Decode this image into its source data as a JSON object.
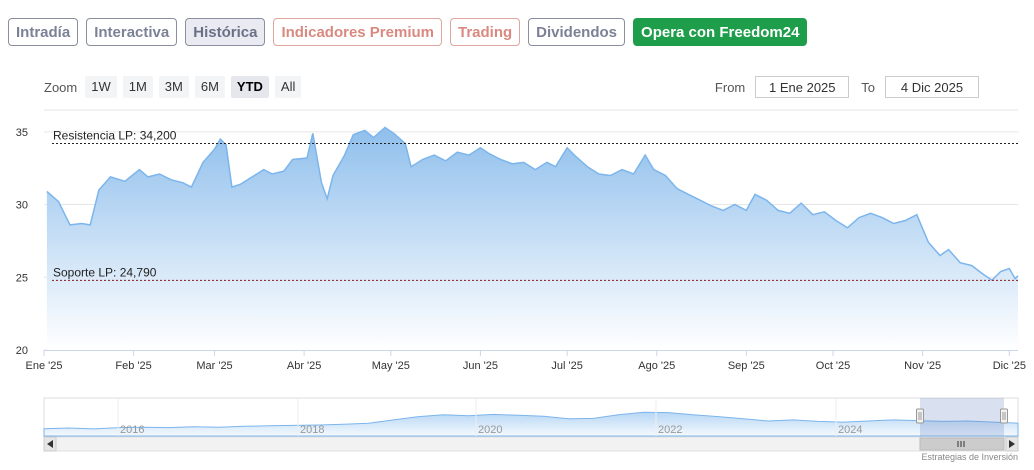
{
  "tabs": [
    {
      "label": "Intradía",
      "state": "normal"
    },
    {
      "label": "Interactiva",
      "state": "normal"
    },
    {
      "label": "Histórica",
      "state": "active"
    },
    {
      "label": "Indicadores Premium",
      "state": "premium"
    },
    {
      "label": "Trading",
      "state": "premium"
    },
    {
      "label": "Dividendos",
      "state": "normal"
    },
    {
      "label": "Opera con Freedom24",
      "state": "cta"
    }
  ],
  "toolbar": {
    "zoom_label": "Zoom",
    "zoom_buttons": [
      "1W",
      "1M",
      "3M",
      "6M",
      "YTD",
      "All"
    ],
    "selected": "YTD"
  },
  "range": {
    "from_label": "From",
    "from_value": "1 Ene 2025",
    "to_label": "To",
    "to_value": "4 Dic 2025"
  },
  "credits": "Estrategias de Inversión",
  "colors": {
    "series_line": "#7cb5ec",
    "area_top": "#8fbfec",
    "area_bottom": "#ffffff",
    "tab_active_bg": "#e9eaf2",
    "premium_border": "#e0a59f",
    "cta_green": "#1e9e4a",
    "resistance_line": "#222222",
    "support_line": "#8b1a1a"
  },
  "chart_data": {
    "type": "area",
    "title": "",
    "xlabel": "",
    "ylabel": "",
    "ylim": [
      20,
      36.5
    ],
    "y_ticks": [
      20,
      25,
      30,
      35
    ],
    "x_ticks": [
      "Ene '25",
      "Feb '25",
      "Mar '25",
      "Abr '25",
      "May '25",
      "Jun '25",
      "Jul '25",
      "Ago '25",
      "Sep '25",
      "Oct '25",
      "Nov '25",
      "Dic '25"
    ],
    "grid": true,
    "legend": "none",
    "series": [
      {
        "values": [
          [
            "2025-01-02",
            30.9
          ],
          [
            "2025-01-06",
            30.2
          ],
          [
            "2025-01-10",
            28.6
          ],
          [
            "2025-01-14",
            28.7
          ],
          [
            "2025-01-17",
            28.6
          ],
          [
            "2025-01-20",
            31.0
          ],
          [
            "2025-01-24",
            31.9
          ],
          [
            "2025-01-29",
            31.6
          ],
          [
            "2025-02-03",
            32.4
          ],
          [
            "2025-02-06",
            31.9
          ],
          [
            "2025-02-10",
            32.1
          ],
          [
            "2025-02-14",
            31.7
          ],
          [
            "2025-02-18",
            31.5
          ],
          [
            "2025-02-21",
            31.2
          ],
          [
            "2025-02-25",
            32.9
          ],
          [
            "2025-03-01",
            33.8
          ],
          [
            "2025-03-03",
            34.5
          ],
          [
            "2025-03-05",
            34.1
          ],
          [
            "2025-03-07",
            31.2
          ],
          [
            "2025-03-10",
            31.4
          ],
          [
            "2025-03-14",
            31.9
          ],
          [
            "2025-03-18",
            32.4
          ],
          [
            "2025-03-21",
            32.1
          ],
          [
            "2025-03-25",
            32.3
          ],
          [
            "2025-03-28",
            33.1
          ],
          [
            "2025-04-02",
            33.2
          ],
          [
            "2025-04-04",
            34.9
          ],
          [
            "2025-04-07",
            31.5
          ],
          [
            "2025-04-09",
            30.4
          ],
          [
            "2025-04-11",
            32.0
          ],
          [
            "2025-04-15",
            33.4
          ],
          [
            "2025-04-18",
            34.8
          ],
          [
            "2025-04-22",
            35.1
          ],
          [
            "2025-04-25",
            34.6
          ],
          [
            "2025-04-29",
            35.3
          ],
          [
            "2025-05-02",
            34.9
          ],
          [
            "2025-05-06",
            34.2
          ],
          [
            "2025-05-08",
            32.6
          ],
          [
            "2025-05-12",
            33.1
          ],
          [
            "2025-05-16",
            33.4
          ],
          [
            "2025-05-20",
            33.0
          ],
          [
            "2025-05-24",
            33.6
          ],
          [
            "2025-05-28",
            33.4
          ],
          [
            "2025-06-01",
            33.9
          ],
          [
            "2025-06-04",
            33.5
          ],
          [
            "2025-06-08",
            33.1
          ],
          [
            "2025-06-12",
            32.8
          ],
          [
            "2025-06-16",
            32.9
          ],
          [
            "2025-06-20",
            32.4
          ],
          [
            "2025-06-24",
            32.9
          ],
          [
            "2025-06-27",
            32.6
          ],
          [
            "2025-07-01",
            33.9
          ],
          [
            "2025-07-04",
            33.3
          ],
          [
            "2025-07-08",
            32.6
          ],
          [
            "2025-07-12",
            32.1
          ],
          [
            "2025-07-16",
            32.0
          ],
          [
            "2025-07-20",
            32.4
          ],
          [
            "2025-07-24",
            32.1
          ],
          [
            "2025-07-28",
            33.4
          ],
          [
            "2025-07-31",
            32.4
          ],
          [
            "2025-08-04",
            32.0
          ],
          [
            "2025-08-08",
            31.1
          ],
          [
            "2025-08-12",
            30.7
          ],
          [
            "2025-08-16",
            30.3
          ],
          [
            "2025-08-20",
            29.9
          ],
          [
            "2025-08-24",
            29.6
          ],
          [
            "2025-08-28",
            30.0
          ],
          [
            "2025-09-01",
            29.6
          ],
          [
            "2025-09-04",
            30.7
          ],
          [
            "2025-09-08",
            30.3
          ],
          [
            "2025-09-12",
            29.6
          ],
          [
            "2025-09-16",
            29.4
          ],
          [
            "2025-09-20",
            30.1
          ],
          [
            "2025-09-24",
            29.3
          ],
          [
            "2025-09-28",
            29.5
          ],
          [
            "2025-10-02",
            28.9
          ],
          [
            "2025-10-06",
            28.4
          ],
          [
            "2025-10-10",
            29.1
          ],
          [
            "2025-10-14",
            29.4
          ],
          [
            "2025-10-18",
            29.1
          ],
          [
            "2025-10-22",
            28.7
          ],
          [
            "2025-10-26",
            28.9
          ],
          [
            "2025-10-30",
            29.3
          ],
          [
            "2025-11-03",
            27.4
          ],
          [
            "2025-11-07",
            26.5
          ],
          [
            "2025-11-10",
            26.9
          ],
          [
            "2025-11-14",
            26.0
          ],
          [
            "2025-11-18",
            25.8
          ],
          [
            "2025-11-22",
            25.2
          ],
          [
            "2025-11-25",
            24.8
          ],
          [
            "2025-11-28",
            25.4
          ],
          [
            "2025-12-01",
            25.6
          ],
          [
            "2025-12-03",
            24.9
          ],
          [
            "2025-12-04",
            25.1
          ]
        ]
      }
    ],
    "annotations": [
      {
        "label": "Resistencia LP: 34,200",
        "y": 34.2,
        "style": "dashed"
      },
      {
        "label": "Soporte LP: 24,790",
        "y": 24.79,
        "style": "dashed"
      }
    ],
    "navigator": {
      "x_ticks": [
        "2016",
        "2018",
        "2020",
        "2022",
        "2024"
      ],
      "selected_range": [
        "2025-01-01",
        "2025-12-04"
      ]
    }
  }
}
